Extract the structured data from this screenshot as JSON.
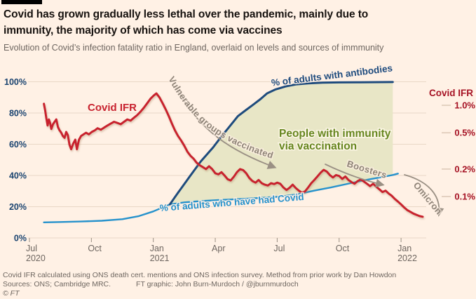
{
  "header": {
    "title_line1": "Covid has grown gradually less lethal over the pandemic, mainly due to",
    "title_line2": "immunity, the majority of which has come via vaccines",
    "subtitle": "Evolution of Covid’s infection fatality ratio in England, overlaid on levels and sources of immmunity"
  },
  "labels": {
    "covid_ifr": "Covid IFR",
    "antibodies": "% of adults with antibodies",
    "had_covid": "% of adults who have had Covid",
    "immunity_line1": "People with immunity",
    "immunity_line2": "via vaccination",
    "vulnerable": "Vulnerable groups vaccinated",
    "boosters": "Boosters",
    "omicron": "Omicron"
  },
  "footer": {
    "note": "Covid IFR calculated using ONS death cert. mentions and ONS infection survey.  Method from prior work by Dan Howdon",
    "sources": "Sources: ONS; Cambridge MRC.",
    "credit": "FT graphic: John Burn-Murdoch / @jburnmurdoch",
    "copyright": "© FT"
  },
  "colors": {
    "background": "#fff1e5",
    "title_text": "#17120f",
    "muted_text": "#6e6660",
    "ifr_red": "#c8222f",
    "right_axis_red": "#a61325",
    "antibodies_blue": "#1e4b7d",
    "had_covid_blue": "#2692cc",
    "left_axis_navy": "#1b4470",
    "immunity_fill": "#e8e6c6",
    "immunity_text": "#66861f",
    "annotation_gray": "#8f8478",
    "gridline": "#e9d7c6",
    "top_bar": "#000000"
  },
  "chart_data": {
    "type": "line",
    "x_unit": "months since 1 Jul 2020",
    "x_axis": {
      "ticks": [
        {
          "m": 0,
          "label": "Jul",
          "sub": "2020"
        },
        {
          "m": 3,
          "label": "Oct"
        },
        {
          "m": 6,
          "label": "Jan",
          "sub": "2021"
        },
        {
          "m": 9,
          "label": "Apr"
        },
        {
          "m": 12,
          "label": "Jul"
        },
        {
          "m": 15,
          "label": "Oct"
        },
        {
          "m": 18,
          "label": "Jan",
          "sub": "2022"
        }
      ]
    },
    "left_axis": {
      "unit": "% of adults",
      "range": [
        0,
        100
      ],
      "ticks": [
        {
          "value": 100,
          "label": "100%"
        },
        {
          "value": 80,
          "label": "80%"
        },
        {
          "value": 60,
          "label": "60%"
        },
        {
          "value": 40,
          "label": "40%"
        },
        {
          "value": 20,
          "label": "20%"
        },
        {
          "value": 0,
          "label": "0%"
        }
      ]
    },
    "right_axis": {
      "title": "Covid IFR",
      "scale": "log",
      "unit": "%",
      "range": [
        0.055,
        1.5
      ],
      "ticks": [
        {
          "value": 1.0,
          "label": "1.0%"
        },
        {
          "value": 0.5,
          "label": "0.5%"
        },
        {
          "value": 0.2,
          "label": "0.2%"
        },
        {
          "value": 0.1,
          "label": "0.1%"
        }
      ]
    },
    "area": {
      "label": "People with immunity via vaccination",
      "between": [
        "antibodies",
        "had_covid"
      ],
      "from_m": 6.8,
      "to_m": 17.6,
      "fill": "#e8e6c6"
    },
    "series": [
      {
        "id": "had_covid",
        "name": "% of adults who have had Covid",
        "axis": "left",
        "color": "#2692cc",
        "points": [
          [
            0.7,
            10
          ],
          [
            1.5,
            10.2
          ],
          [
            2.5,
            10.5
          ],
          [
            3.5,
            11
          ],
          [
            4.5,
            12
          ],
          [
            5.3,
            14
          ],
          [
            6.0,
            17
          ],
          [
            6.8,
            21.5
          ],
          [
            7.5,
            22.8
          ],
          [
            8.3,
            23.6
          ],
          [
            9.2,
            24.3
          ],
          [
            10.2,
            24.9
          ],
          [
            11.2,
            25.6
          ],
          [
            12.2,
            26.5
          ],
          [
            13.0,
            28
          ],
          [
            13.8,
            30.3
          ],
          [
            14.6,
            32.3
          ],
          [
            15.4,
            34.6
          ],
          [
            16.2,
            36.9
          ],
          [
            17.0,
            38.8
          ],
          [
            17.6,
            40.3
          ],
          [
            17.85,
            41.2
          ]
        ]
      },
      {
        "id": "antibodies",
        "name": "% of adults with antibodies",
        "axis": "left",
        "color": "#1e4b7d",
        "points": [
          [
            6.8,
            21.5
          ],
          [
            7.2,
            29
          ],
          [
            7.8,
            40
          ],
          [
            8.3,
            49
          ],
          [
            8.9,
            58
          ],
          [
            9.3,
            65
          ],
          [
            9.7,
            71.5
          ],
          [
            10.1,
            78
          ],
          [
            10.5,
            82
          ],
          [
            10.8,
            85
          ],
          [
            11.2,
            89
          ],
          [
            11.5,
            92.5
          ],
          [
            11.9,
            95
          ],
          [
            12.4,
            97
          ],
          [
            12.9,
            98.3
          ],
          [
            13.5,
            99
          ],
          [
            14.2,
            99.4
          ],
          [
            15.0,
            99.6
          ],
          [
            16.0,
            99.7
          ],
          [
            17.6,
            99.8
          ]
        ]
      },
      {
        "id": "ifr",
        "name": "Covid IFR",
        "axis": "right",
        "color": "#c8222f",
        "points": [
          [
            0.7,
            1.04
          ],
          [
            0.76,
            0.88
          ],
          [
            0.82,
            0.72
          ],
          [
            0.88,
            0.6
          ],
          [
            0.94,
            0.7
          ],
          [
            1.0,
            0.64
          ],
          [
            1.06,
            0.55
          ],
          [
            1.14,
            0.62
          ],
          [
            1.22,
            0.66
          ],
          [
            1.3,
            0.7
          ],
          [
            1.38,
            0.58
          ],
          [
            1.46,
            0.53
          ],
          [
            1.54,
            0.5
          ],
          [
            1.62,
            0.46
          ],
          [
            1.7,
            0.44
          ],
          [
            1.78,
            0.51
          ],
          [
            1.86,
            0.47
          ],
          [
            1.94,
            0.37
          ],
          [
            2.02,
            0.33
          ],
          [
            2.12,
            0.38
          ],
          [
            2.22,
            0.42
          ],
          [
            2.3,
            0.33
          ],
          [
            2.4,
            0.42
          ],
          [
            2.5,
            0.46
          ],
          [
            2.62,
            0.48
          ],
          [
            2.74,
            0.5
          ],
          [
            2.88,
            0.48
          ],
          [
            3.02,
            0.51
          ],
          [
            3.16,
            0.53
          ],
          [
            3.3,
            0.56
          ],
          [
            3.46,
            0.54
          ],
          [
            3.62,
            0.57
          ],
          [
            3.78,
            0.6
          ],
          [
            3.94,
            0.63
          ],
          [
            4.1,
            0.66
          ],
          [
            4.26,
            0.64
          ],
          [
            4.42,
            0.62
          ],
          [
            4.58,
            0.66
          ],
          [
            4.74,
            0.7
          ],
          [
            4.9,
            0.68
          ],
          [
            5.06,
            0.73
          ],
          [
            5.22,
            0.78
          ],
          [
            5.38,
            0.85
          ],
          [
            5.54,
            0.94
          ],
          [
            5.7,
            1.05
          ],
          [
            5.86,
            1.18
          ],
          [
            6.02,
            1.28
          ],
          [
            6.15,
            1.35
          ],
          [
            6.3,
            1.22
          ],
          [
            6.45,
            1.05
          ],
          [
            6.6,
            0.9
          ],
          [
            6.75,
            0.76
          ],
          [
            6.9,
            0.63
          ],
          [
            7.05,
            0.53
          ],
          [
            7.2,
            0.46
          ],
          [
            7.35,
            0.41
          ],
          [
            7.5,
            0.36
          ],
          [
            7.65,
            0.31
          ],
          [
            7.8,
            0.28
          ],
          [
            7.95,
            0.26
          ],
          [
            8.1,
            0.235
          ],
          [
            8.25,
            0.22
          ],
          [
            8.4,
            0.21
          ],
          [
            8.55,
            0.2
          ],
          [
            8.7,
            0.215
          ],
          [
            8.85,
            0.2
          ],
          [
            9.0,
            0.18
          ],
          [
            9.15,
            0.175
          ],
          [
            9.3,
            0.185
          ],
          [
            9.45,
            0.17
          ],
          [
            9.6,
            0.155
          ],
          [
            9.75,
            0.15
          ],
          [
            9.9,
            0.165
          ],
          [
            10.05,
            0.185
          ],
          [
            10.2,
            0.2
          ],
          [
            10.35,
            0.195
          ],
          [
            10.5,
            0.18
          ],
          [
            10.65,
            0.16
          ],
          [
            10.8,
            0.148
          ],
          [
            10.95,
            0.142
          ],
          [
            11.1,
            0.152
          ],
          [
            11.25,
            0.14
          ],
          [
            11.4,
            0.135
          ],
          [
            11.55,
            0.132
          ],
          [
            11.7,
            0.14
          ],
          [
            11.85,
            0.137
          ],
          [
            12.0,
            0.142
          ],
          [
            12.15,
            0.138
          ],
          [
            12.3,
            0.126
          ],
          [
            12.45,
            0.118
          ],
          [
            12.6,
            0.125
          ],
          [
            12.75,
            0.135
          ],
          [
            12.9,
            0.124
          ],
          [
            13.05,
            0.116
          ],
          [
            13.2,
            0.11
          ],
          [
            13.35,
            0.114
          ],
          [
            13.5,
            0.126
          ],
          [
            13.65,
            0.14
          ],
          [
            13.8,
            0.152
          ],
          [
            13.95,
            0.166
          ],
          [
            14.1,
            0.182
          ],
          [
            14.25,
            0.196
          ],
          [
            14.4,
            0.188
          ],
          [
            14.55,
            0.172
          ],
          [
            14.7,
            0.162
          ],
          [
            14.85,
            0.172
          ],
          [
            15.0,
            0.168
          ],
          [
            15.15,
            0.156
          ],
          [
            15.3,
            0.166
          ],
          [
            15.45,
            0.152
          ],
          [
            15.6,
            0.144
          ],
          [
            15.75,
            0.138
          ],
          [
            15.9,
            0.148
          ],
          [
            16.05,
            0.154
          ],
          [
            16.2,
            0.146
          ],
          [
            16.35,
            0.138
          ],
          [
            16.5,
            0.13
          ],
          [
            16.65,
            0.138
          ],
          [
            16.8,
            0.128
          ],
          [
            16.95,
            0.12
          ],
          [
            17.1,
            0.112
          ],
          [
            17.25,
            0.116
          ],
          [
            17.4,
            0.108
          ],
          [
            17.55,
            0.102
          ],
          [
            17.7,
            0.094
          ],
          [
            17.85,
            0.088
          ],
          [
            18.0,
            0.082
          ],
          [
            18.15,
            0.076
          ],
          [
            18.3,
            0.071
          ],
          [
            18.45,
            0.068
          ],
          [
            18.6,
            0.065
          ],
          [
            18.75,
            0.063
          ],
          [
            18.9,
            0.061
          ],
          [
            19.05,
            0.06
          ]
        ]
      }
    ]
  }
}
